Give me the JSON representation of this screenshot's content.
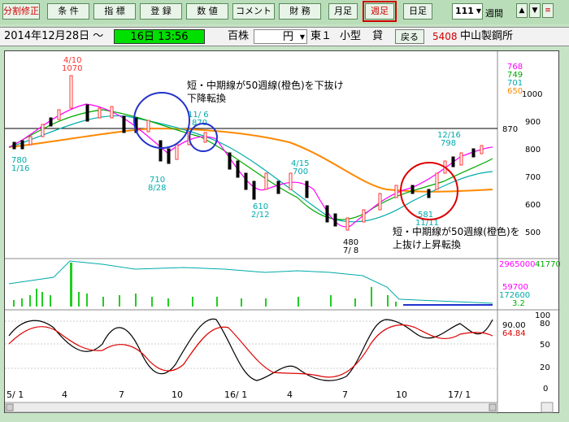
{
  "toolbar": {
    "buttons": [
      "分割修正",
      "条 件",
      "指 標",
      "登 録",
      "数 値",
      "コメント",
      "財 務",
      "月足",
      "週足",
      "日足"
    ],
    "period_value": "111",
    "period_unit": "週間",
    "up": "▲",
    "down": "▼",
    "menu": "≡"
  },
  "info": {
    "date": "2014年12月28日 ～",
    "session": "16日 13:56",
    "unit1": "百株",
    "currency": "円",
    "market": "東１",
    "size": "小型",
    "lending": "貸",
    "back": "戻る",
    "code": "5408",
    "name": "中山製鋼所"
  },
  "annotations": {
    "top_text_1": "短・中期線が50週線(橙色)を下抜け",
    "top_text_2": "下降転換",
    "bottom_text_1": "短・中期線が50週線(橙色)を",
    "bottom_text_2": "上抜け上昇転換"
  },
  "price_labels": {
    "hi1_date": "4/10",
    "hi1_val": "1070",
    "lo1_val": "780",
    "lo1_date": "1/16",
    "lo2_val": "710",
    "lo2_date": "8/28",
    "hi2_date": "11/ 6",
    "hi2_val": "870",
    "lo3_val": "610",
    "lo3_date": "2/12",
    "hi3_date": "4/15",
    "hi3_val": "700",
    "lo4_val": "480",
    "lo4_date": "7/ 8",
    "hi4_date": "12/16",
    "hi4_val": "798",
    "lo5_val": "581",
    "lo5_date": "11/11",
    "ref_line": "870"
  },
  "right_axis": {
    "price_ticks": [
      "1000",
      "900",
      "800",
      "700",
      "600",
      "500"
    ],
    "legend_values": [
      "768",
      "749",
      "701",
      "650"
    ],
    "legend_colors": [
      "#ff00ff",
      "#00aa00",
      "#00aaaa",
      "#ff8800"
    ],
    "volume_max": "2965000",
    "volume_max2": "41770",
    "vol_vals": [
      "59700",
      "172600",
      "3.2"
    ],
    "osc_ticks": [
      "100",
      "80",
      "50",
      "20",
      "0"
    ],
    "osc_vals": [
      "90.00",
      "64.84"
    ]
  },
  "x_axis": [
    "5/ 1",
    "4",
    "7",
    "10",
    "16/ 1",
    "4",
    "7",
    "10",
    "17/ 1"
  ],
  "colors": {
    "up": "#ff3333",
    "down": "#000000",
    "short_ma": "#ff00ff",
    "mid_ma": "#00aa00",
    "long_ma": "#00aaaa",
    "ma50": "#ff8800",
    "volume": "#22cc22",
    "osc_black": "#000000",
    "osc_red": "#dd0000",
    "circle_blue": "#2233cc",
    "circle_red": "#dd0000"
  }
}
